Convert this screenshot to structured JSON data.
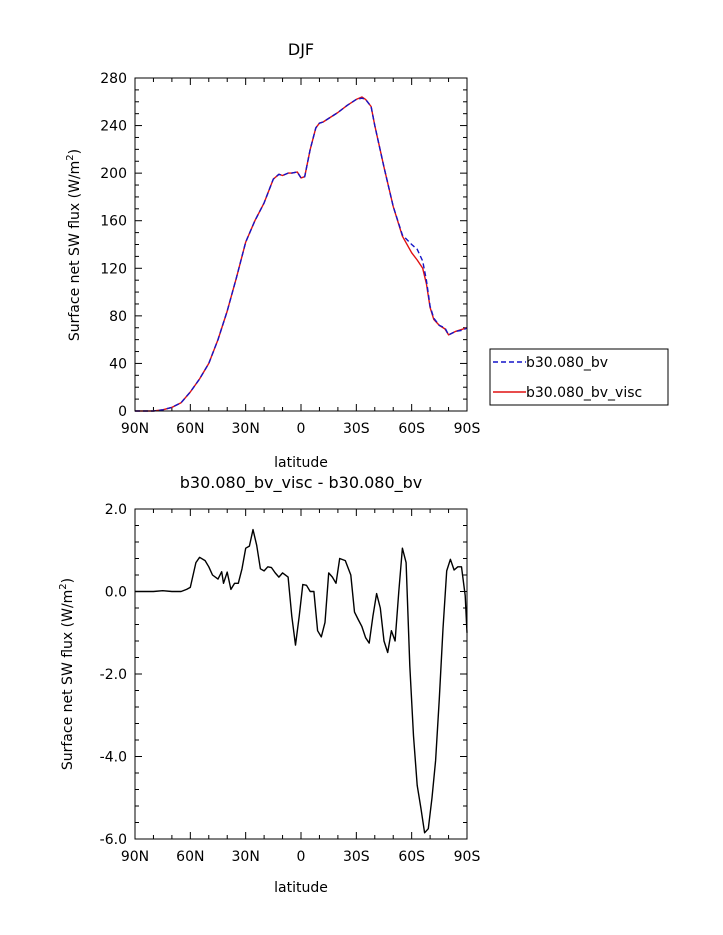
{
  "chart_data": [
    {
      "type": "line",
      "title": "DJF",
      "xlabel": "latitude",
      "ylabel": "Surface net SW flux (W/m²)",
      "ylabel_text": "Surface net SW flux (W/m",
      "ylabel_sup": "2",
      "ylabel_close": ")",
      "xlim": [
        -90,
        90
      ],
      "ylim": [
        0,
        280
      ],
      "xticks": [
        -90,
        -60,
        -30,
        0,
        30,
        60,
        90
      ],
      "xtick_labels": [
        "90N",
        "60N",
        "30N",
        "0",
        "30S",
        "60S",
        "90S"
      ],
      "yticks": [
        0,
        40,
        80,
        120,
        160,
        200,
        240,
        280
      ],
      "ytick_labels": [
        "0",
        "40",
        "80",
        "120",
        "160",
        "200",
        "240",
        "280"
      ],
      "legend_position": "right",
      "series": [
        {
          "name": "b30.080_bv",
          "color": "#1414c8",
          "style": "dashed",
          "x": [
            -90,
            -85,
            -80,
            -75,
            -70,
            -65,
            -60,
            -55,
            -50,
            -45,
            -40,
            -35,
            -30,
            -25,
            -20,
            -15,
            -12,
            -10,
            -7,
            -5,
            -2,
            0,
            2,
            5,
            8,
            10,
            12,
            15,
            18,
            20,
            25,
            30,
            33,
            35,
            38,
            40,
            45,
            50,
            55,
            60,
            63,
            66,
            68,
            70,
            72,
            75,
            78,
            80,
            84,
            88,
            90
          ],
          "y": [
            0,
            0,
            0,
            1,
            3,
            7,
            16,
            27,
            40,
            60,
            84,
            112,
            142,
            160,
            175,
            195,
            199,
            198,
            200,
            200,
            201,
            196,
            197,
            220,
            238,
            242,
            243,
            246,
            249,
            251,
            257,
            262,
            263,
            262,
            256,
            240,
            205,
            172,
            148,
            140,
            136,
            126,
            110,
            88,
            78,
            72,
            70,
            64,
            67,
            68,
            70
          ]
        },
        {
          "name": "b30.080_bv_visc",
          "color": "#e01010",
          "style": "solid",
          "x": [
            -90,
            -85,
            -80,
            -75,
            -70,
            -65,
            -60,
            -55,
            -50,
            -45,
            -40,
            -35,
            -30,
            -25,
            -20,
            -15,
            -12,
            -10,
            -7,
            -5,
            -2,
            0,
            2,
            5,
            8,
            10,
            12,
            15,
            18,
            20,
            25,
            30,
            33,
            35,
            38,
            40,
            45,
            50,
            55,
            60,
            63,
            66,
            68,
            70,
            72,
            75,
            78,
            80,
            84,
            88,
            90
          ],
          "y": [
            0,
            0,
            0,
            1,
            3,
            7,
            16,
            27,
            40,
            60,
            84,
            112,
            142,
            160,
            175,
            195,
            199,
            198,
            200,
            200,
            201,
            196,
            197,
            220,
            238,
            242,
            243,
            246,
            249,
            251,
            257,
            262,
            264,
            262,
            256,
            240,
            205,
            172,
            147,
            133,
            127,
            120,
            107,
            87,
            77,
            72,
            69,
            64,
            67,
            69,
            70
          ]
        }
      ]
    },
    {
      "type": "line",
      "title": "b30.080_bv_visc - b30.080_bv",
      "xlabel": "latitude",
      "ylabel": "Surface net SW flux (W/m²)",
      "ylabel_text": "Surface net SW flux (W/m",
      "ylabel_sup": "2",
      "ylabel_close": ")",
      "xlim": [
        -90,
        90
      ],
      "ylim": [
        -6,
        2
      ],
      "xticks": [
        -90,
        -60,
        -30,
        0,
        30,
        60,
        90
      ],
      "xtick_labels": [
        "90N",
        "60N",
        "30N",
        "0",
        "30S",
        "60S",
        "90S"
      ],
      "yticks": [
        -6,
        -4,
        -2,
        0,
        2
      ],
      "ytick_labels": [
        "-6.0",
        "-4.0",
        "-2.0",
        "0.0",
        "2.0"
      ],
      "series": [
        {
          "color": "#000000",
          "style": "solid",
          "x": [
            -90,
            -80,
            -75,
            -70,
            -65,
            -62,
            -60,
            -57,
            -55,
            -52,
            -50,
            -48,
            -45,
            -43,
            -42,
            -40,
            -38,
            -36,
            -34,
            -32,
            -30,
            -28,
            -26,
            -24,
            -22,
            -20,
            -18,
            -16,
            -14,
            -12,
            -10,
            -7,
            -5,
            -3,
            -1,
            1,
            3,
            5,
            7,
            9,
            11,
            13,
            15,
            17,
            19,
            21,
            24,
            27,
            29,
            31,
            33,
            35,
            37,
            39,
            41,
            43,
            45,
            47,
            49,
            51,
            53,
            55,
            57,
            59,
            61,
            63,
            65,
            67,
            69,
            71,
            73,
            75,
            77,
            79,
            81,
            83,
            85,
            87,
            89,
            90
          ],
          "y": [
            0,
            0,
            0.02,
            0,
            0,
            0.05,
            0.1,
            0.7,
            0.83,
            0.75,
            0.6,
            0.4,
            0.3,
            0.48,
            0.2,
            0.47,
            0.05,
            0.2,
            0.2,
            0.55,
            1.05,
            1.1,
            1.5,
            1.12,
            0.55,
            0.5,
            0.6,
            0.58,
            0.45,
            0.35,
            0.45,
            0.35,
            -0.6,
            -1.3,
            -0.6,
            0.17,
            0.15,
            0,
            0,
            -0.95,
            -1.1,
            -0.75,
            0.45,
            0.35,
            0.2,
            0.8,
            0.75,
            0.4,
            -0.5,
            -0.68,
            -0.85,
            -1.12,
            -1.25,
            -0.6,
            -0.05,
            -0.4,
            -1.2,
            -1.48,
            -0.95,
            -1.2,
            0,
            1.05,
            0.7,
            -1.8,
            -3.5,
            -4.7,
            -5.25,
            -5.85,
            -5.75,
            -5.0,
            -4.1,
            -2.6,
            -0.9,
            0.5,
            0.78,
            0.52,
            0.6,
            0.6,
            -0.1,
            -1.0
          ]
        }
      ]
    }
  ]
}
